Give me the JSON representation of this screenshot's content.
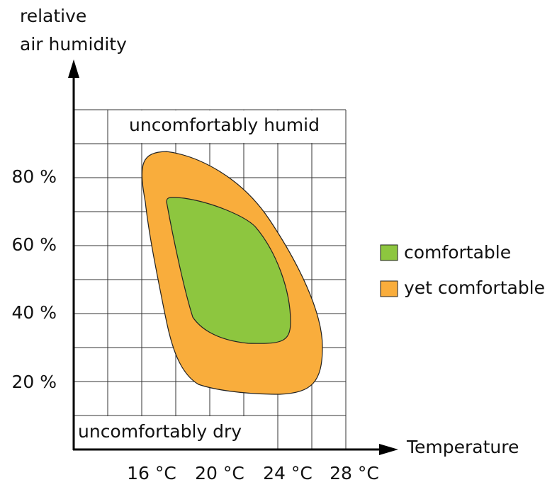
{
  "axes": {
    "y_label": [
      "relative",
      "air humidity"
    ],
    "x_label": "Temperature",
    "y_ticks": [
      "80 %",
      "60 %",
      "40 %",
      "20 %"
    ],
    "x_ticks": [
      "16 °C",
      "20 °C",
      "24 °C",
      "28 °C"
    ]
  },
  "regions": {
    "humid": "uncomfortably humid",
    "dry": "uncomfortably dry"
  },
  "legend": [
    "comfortable",
    "yet comfortable"
  ]
}
